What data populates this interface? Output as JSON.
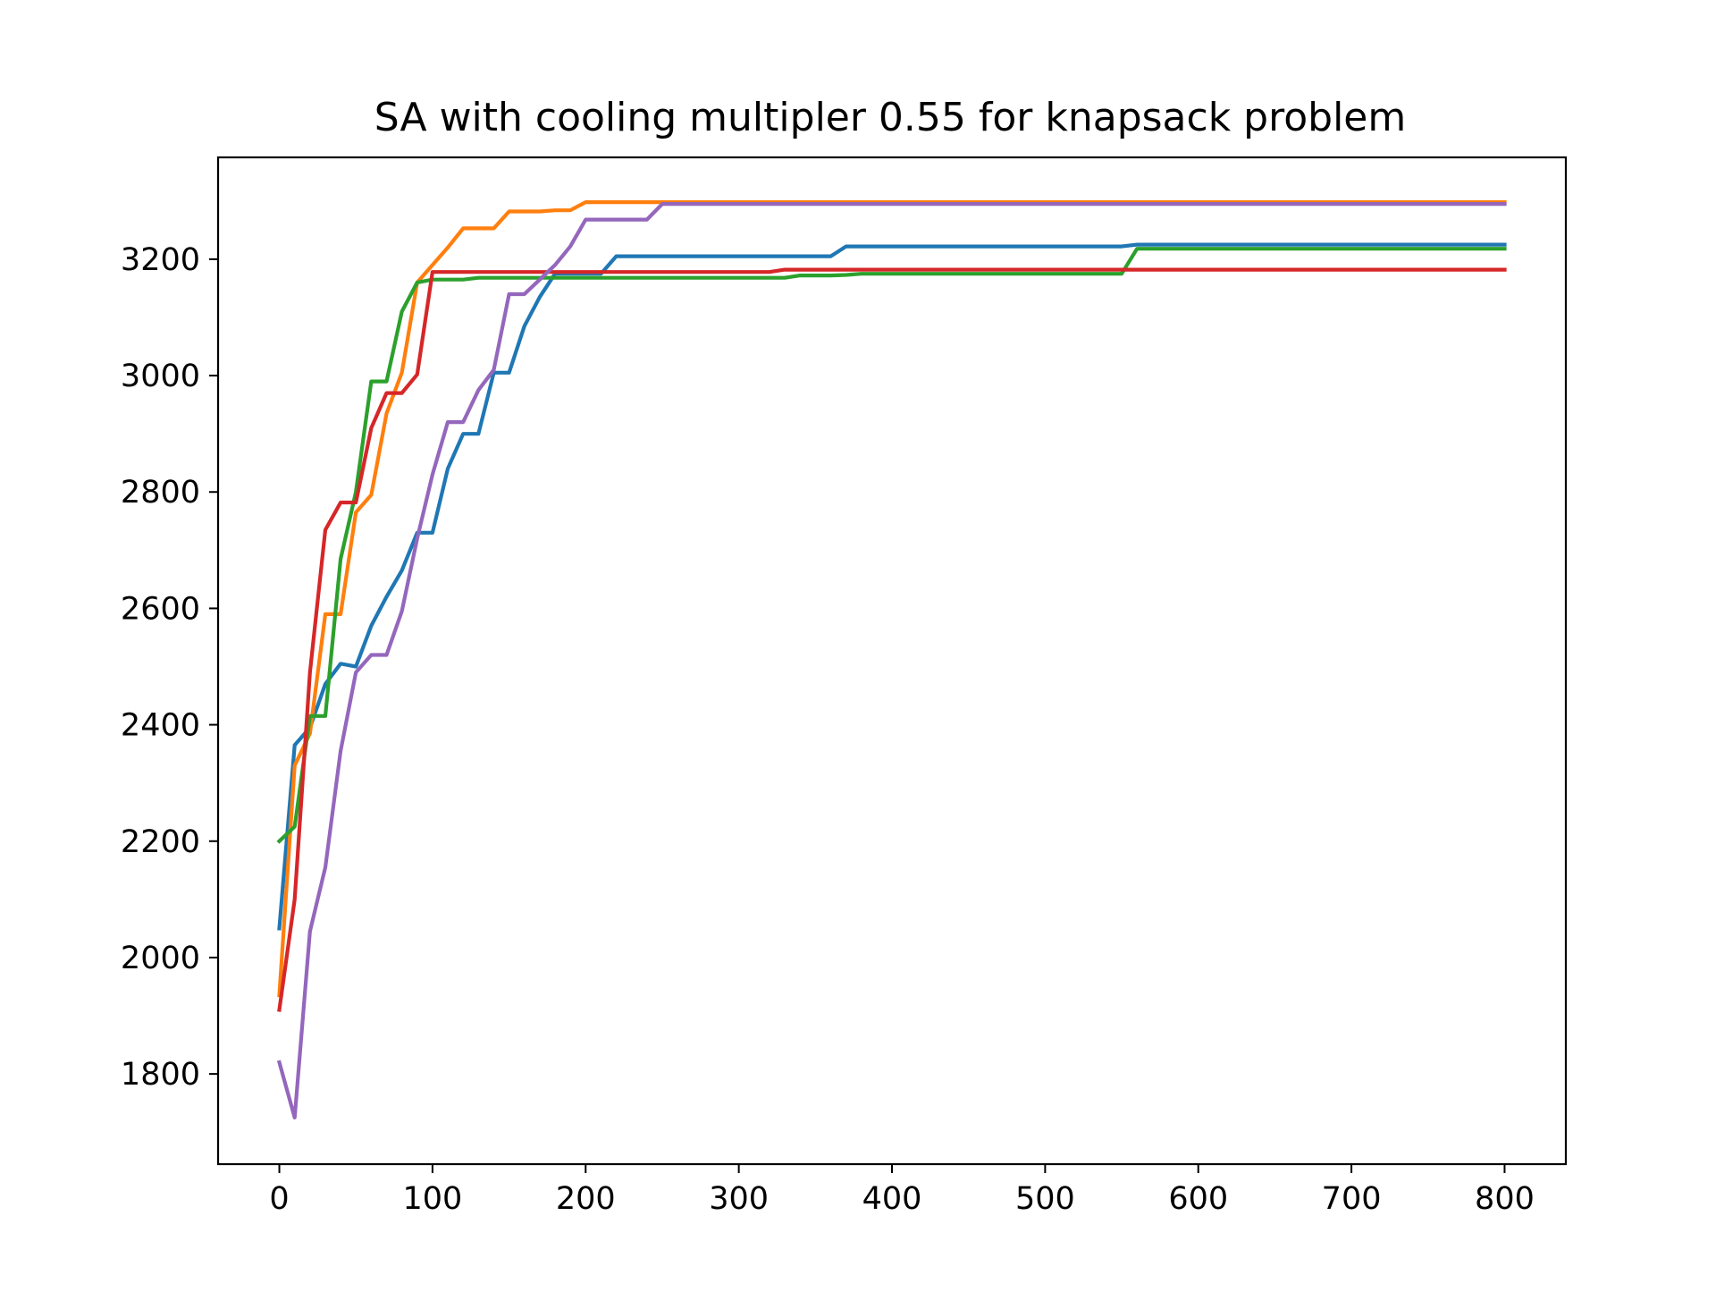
{
  "chart_data": {
    "type": "line",
    "title": "SA with cooling multipler 0.55 for knapsack problem",
    "xlabel": "",
    "ylabel": "",
    "xlim": [
      -40,
      840
    ],
    "ylim": [
      1645,
      3375
    ],
    "xticks": [
      0,
      100,
      200,
      300,
      400,
      500,
      600,
      700,
      800
    ],
    "yticks": [
      1800,
      2000,
      2200,
      2400,
      2600,
      2800,
      3000,
      3200
    ],
    "grid": false,
    "legend": "none",
    "series": [
      {
        "color": "#1f77b4",
        "points": [
          [
            0,
            2050
          ],
          [
            10,
            2365
          ],
          [
            20,
            2395
          ],
          [
            30,
            2470
          ],
          [
            40,
            2505
          ],
          [
            50,
            2500
          ],
          [
            60,
            2570
          ],
          [
            70,
            2620
          ],
          [
            80,
            2665
          ],
          [
            90,
            2730
          ],
          [
            100,
            2730
          ],
          [
            110,
            2840
          ],
          [
            120,
            2900
          ],
          [
            130,
            2900
          ],
          [
            140,
            3005
          ],
          [
            150,
            3005
          ],
          [
            160,
            3085
          ],
          [
            170,
            3135
          ],
          [
            180,
            3175
          ],
          [
            190,
            3175
          ],
          [
            200,
            3175
          ],
          [
            210,
            3175
          ],
          [
            220,
            3205
          ],
          [
            230,
            3205
          ],
          [
            250,
            3205
          ],
          [
            300,
            3205
          ],
          [
            350,
            3205
          ],
          [
            360,
            3205
          ],
          [
            370,
            3222
          ],
          [
            400,
            3222
          ],
          [
            500,
            3222
          ],
          [
            550,
            3222
          ],
          [
            560,
            3225
          ],
          [
            600,
            3225
          ],
          [
            700,
            3225
          ],
          [
            800,
            3225
          ]
        ]
      },
      {
        "color": "#ff7f0e",
        "points": [
          [
            0,
            1935
          ],
          [
            10,
            2330
          ],
          [
            20,
            2385
          ],
          [
            30,
            2590
          ],
          [
            40,
            2590
          ],
          [
            50,
            2765
          ],
          [
            60,
            2795
          ],
          [
            70,
            2935
          ],
          [
            80,
            3005
          ],
          [
            90,
            3160
          ],
          [
            100,
            3190
          ],
          [
            110,
            3220
          ],
          [
            120,
            3253
          ],
          [
            130,
            3253
          ],
          [
            140,
            3253
          ],
          [
            150,
            3282
          ],
          [
            160,
            3282
          ],
          [
            170,
            3282
          ],
          [
            180,
            3284
          ],
          [
            190,
            3284
          ],
          [
            200,
            3298
          ],
          [
            250,
            3298
          ],
          [
            300,
            3298
          ],
          [
            400,
            3298
          ],
          [
            500,
            3298
          ],
          [
            600,
            3298
          ],
          [
            700,
            3298
          ],
          [
            800,
            3298
          ]
        ]
      },
      {
        "color": "#2ca02c",
        "points": [
          [
            0,
            2200
          ],
          [
            10,
            2225
          ],
          [
            20,
            2415
          ],
          [
            30,
            2415
          ],
          [
            40,
            2685
          ],
          [
            50,
            2800
          ],
          [
            60,
            2990
          ],
          [
            70,
            2990
          ],
          [
            80,
            3110
          ],
          [
            90,
            3160
          ],
          [
            100,
            3165
          ],
          [
            110,
            3165
          ],
          [
            120,
            3165
          ],
          [
            130,
            3168
          ],
          [
            200,
            3168
          ],
          [
            300,
            3168
          ],
          [
            330,
            3168
          ],
          [
            340,
            3172
          ],
          [
            360,
            3172
          ],
          [
            370,
            3173
          ],
          [
            380,
            3175
          ],
          [
            400,
            3175
          ],
          [
            500,
            3175
          ],
          [
            550,
            3175
          ],
          [
            560,
            3218
          ],
          [
            600,
            3218
          ],
          [
            700,
            3218
          ],
          [
            800,
            3218
          ]
        ]
      },
      {
        "color": "#d62728",
        "points": [
          [
            0,
            1910
          ],
          [
            10,
            2100
          ],
          [
            20,
            2490
          ],
          [
            30,
            2735
          ],
          [
            40,
            2782
          ],
          [
            50,
            2782
          ],
          [
            60,
            2910
          ],
          [
            70,
            2970
          ],
          [
            80,
            2970
          ],
          [
            90,
            3002
          ],
          [
            100,
            3178
          ],
          [
            150,
            3178
          ],
          [
            200,
            3178
          ],
          [
            250,
            3178
          ],
          [
            300,
            3178
          ],
          [
            320,
            3178
          ],
          [
            330,
            3182
          ],
          [
            400,
            3182
          ],
          [
            500,
            3182
          ],
          [
            600,
            3182
          ],
          [
            700,
            3182
          ],
          [
            800,
            3182
          ]
        ]
      },
      {
        "color": "#9467bd",
        "points": [
          [
            0,
            1820
          ],
          [
            10,
            1725
          ],
          [
            20,
            2045
          ],
          [
            30,
            2155
          ],
          [
            40,
            2355
          ],
          [
            50,
            2490
          ],
          [
            60,
            2520
          ],
          [
            70,
            2520
          ],
          [
            80,
            2595
          ],
          [
            90,
            2720
          ],
          [
            100,
            2830
          ],
          [
            110,
            2920
          ],
          [
            120,
            2920
          ],
          [
            130,
            2975
          ],
          [
            140,
            3010
          ],
          [
            150,
            3140
          ],
          [
            160,
            3140
          ],
          [
            170,
            3165
          ],
          [
            180,
            3190
          ],
          [
            190,
            3222
          ],
          [
            200,
            3268
          ],
          [
            210,
            3268
          ],
          [
            220,
            3268
          ],
          [
            230,
            3268
          ],
          [
            240,
            3268
          ],
          [
            250,
            3295
          ],
          [
            300,
            3295
          ],
          [
            400,
            3295
          ],
          [
            500,
            3295
          ],
          [
            600,
            3295
          ],
          [
            700,
            3295
          ],
          [
            800,
            3295
          ]
        ]
      }
    ]
  }
}
